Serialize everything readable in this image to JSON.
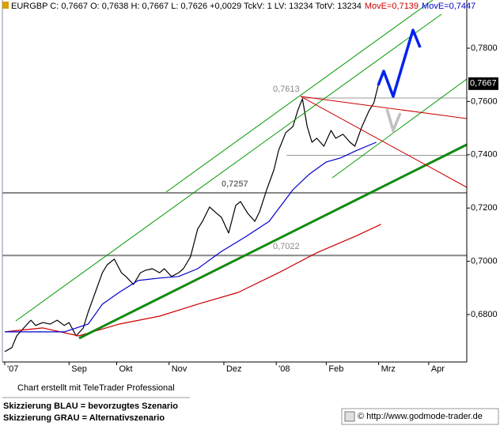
{
  "chart_data": {
    "type": "line",
    "title": "EURGBP C: 0,7667 O: 0,7638 H: 0,7667 L: 0,7626 +0,0029 TckV: 1 LV: 13234 TotV: 13234",
    "series": [
      {
        "color": "#000000",
        "x": [
          1,
          4,
          6,
          9,
          12,
          14,
          17,
          20,
          23,
          26,
          28,
          31,
          34,
          36,
          39,
          42,
          44,
          47,
          50,
          52,
          55,
          58,
          60,
          63,
          66,
          68,
          71,
          74,
          76,
          79,
          82,
          84,
          87,
          90,
          92,
          95,
          98,
          100,
          103,
          106,
          108,
          111,
          114,
          116,
          119,
          122,
          124,
          126,
          128,
          130,
          132,
          135,
          138,
          140,
          143,
          146,
          148,
          151,
          154,
          156,
          158
        ],
        "values": [
          0.6661,
          0.6676,
          0.672,
          0.675,
          0.6779,
          0.6759,
          0.677,
          0.6764,
          0.6779,
          0.6759,
          0.677,
          0.672,
          0.675,
          0.6809,
          0.6883,
          0.6957,
          0.6987,
          0.7008,
          0.6957,
          0.6942,
          0.6913,
          0.6957,
          0.6966,
          0.6972,
          0.6957,
          0.6972,
          0.6943,
          0.6957,
          0.6972,
          0.7017,
          0.7121,
          0.715,
          0.7204,
          0.718,
          0.7165,
          0.7106,
          0.721,
          0.7224,
          0.718,
          0.715,
          0.7186,
          0.7269,
          0.7343,
          0.7417,
          0.7483,
          0.7506,
          0.7566,
          0.761,
          0.7506,
          0.7447,
          0.7462,
          0.7432,
          0.7491,
          0.7462,
          0.7477,
          0.7447,
          0.7432,
          0.7506,
          0.7566,
          0.7595,
          0.7667
        ]
      },
      {
        "name": "MovE=0,7139",
        "color": "#cc0000",
        "x": [
          1,
          17,
          32,
          49,
          66,
          82,
          99,
          116,
          132,
          149,
          159
        ],
        "values": [
          0.6735,
          0.675,
          0.672,
          0.6764,
          0.6794,
          0.6839,
          0.6883,
          0.6957,
          0.7032,
          0.7097,
          0.7139
        ]
      },
      {
        "name": "MovE=0,7447",
        "color": "#0000cc",
        "x": [
          1,
          12,
          26,
          36,
          42,
          49,
          57,
          66,
          74,
          82,
          92,
          102,
          112,
          122,
          129,
          136,
          142,
          149,
          157
        ],
        "values": [
          0.6735,
          0.6735,
          0.6735,
          0.6764,
          0.6839,
          0.6883,
          0.6928,
          0.6937,
          0.6943,
          0.6972,
          0.7037,
          0.7091,
          0.715,
          0.7269,
          0.7328,
          0.7373,
          0.7388,
          0.7417,
          0.7447
        ]
      }
    ],
    "xlim": [
      0,
      195
    ],
    "xticks": [
      {
        "value": 1,
        "label": "'07"
      },
      {
        "value": 28,
        "label": "Sep"
      },
      {
        "value": 48,
        "label": "Okt"
      },
      {
        "value": 70,
        "label": "Nov"
      },
      {
        "value": 93,
        "label": "Dez"
      },
      {
        "value": 115,
        "label": "'08"
      },
      {
        "value": 136,
        "label": "Feb"
      },
      {
        "value": 158,
        "label": "Mrz"
      },
      {
        "value": 179,
        "label": "Apr"
      }
    ],
    "ylim": [
      0.6622,
      0.7981
    ],
    "yticks": [
      {
        "value": 0.68,
        "label": "0,6800"
      },
      {
        "value": 0.7,
        "label": "0,7000"
      },
      {
        "value": 0.72,
        "label": "0,7200"
      },
      {
        "value": 0.74,
        "label": "0,7400"
      },
      {
        "value": 0.76,
        "label": "0,7600"
      },
      {
        "value": 0.78,
        "label": "0,7800"
      }
    ],
    "last_price": {
      "value": 0.7667,
      "label": "0,7667"
    },
    "levels": [
      {
        "value": 0.7613,
        "label": "0,7613"
      },
      {
        "value": 0.7257,
        "label": "0,7257"
      },
      {
        "value": 0.7022,
        "label": "0,7022"
      },
      {
        "value": 0.7398
      }
    ]
  },
  "footer": {
    "credit": "Chart erstellt mit TeleTrader Professional",
    "note_blue": "Skizzierung BLAU = bevorzugtes Szenario",
    "note_gray": "Skizzierung GRAU = Alternativszenario",
    "source": "© http://www.godmode-trader.de"
  }
}
